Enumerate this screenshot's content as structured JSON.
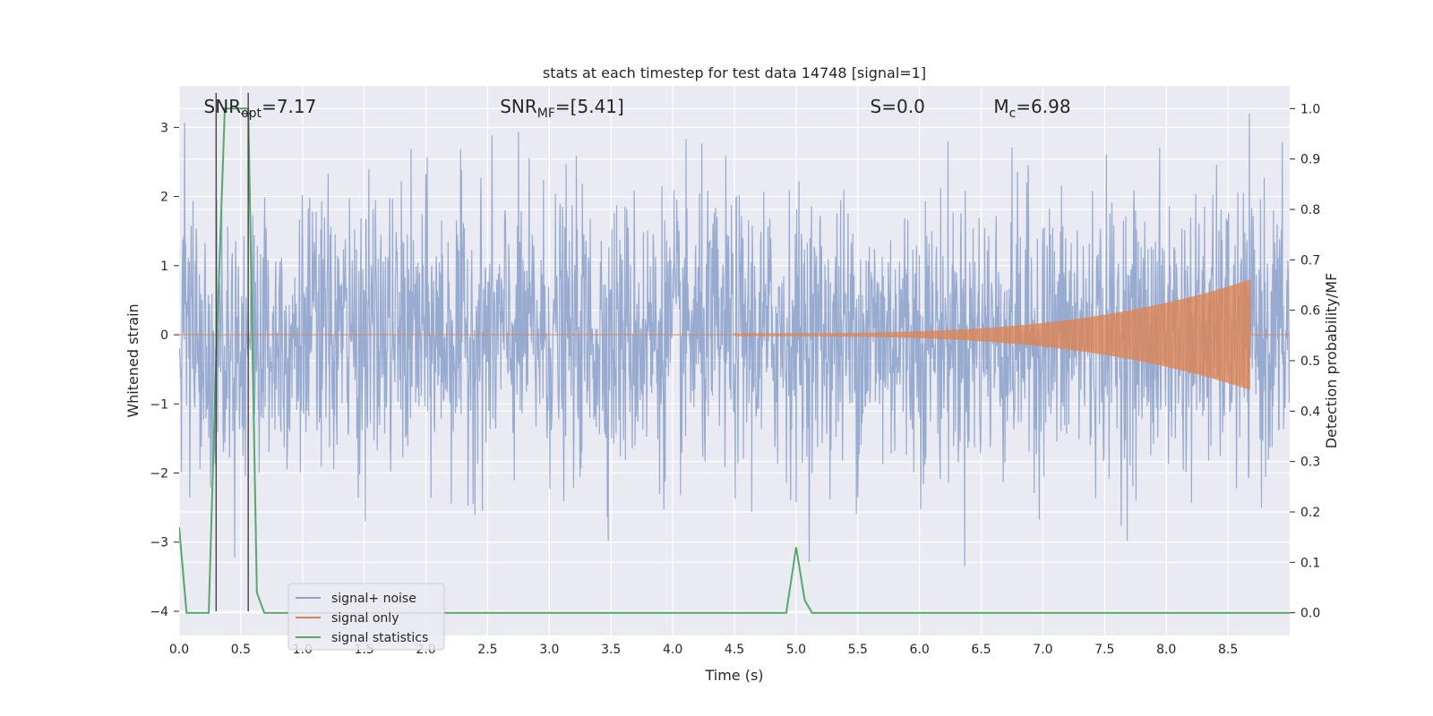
{
  "chart_data": {
    "type": "line",
    "title": "stats at each timestep for test data 14748 [signal=1]",
    "xlabel": "Time (s)",
    "ylabel": "Whitened strain",
    "y2label": "Detection probability/MF",
    "xlim": [
      0,
      9.0
    ],
    "ylim": [
      -4.35,
      3.6
    ],
    "y2lim": [
      -0.045,
      1.045
    ],
    "xticks": [
      "0.0",
      "0.5",
      "1.0",
      "1.5",
      "2.0",
      "2.5",
      "3.0",
      "3.5",
      "4.0",
      "4.5",
      "5.0",
      "5.5",
      "6.0",
      "6.5",
      "7.0",
      "7.5",
      "8.0",
      "8.5"
    ],
    "yticks": [
      "-4",
      "-3",
      "-2",
      "-1",
      "0",
      "1",
      "2",
      "3"
    ],
    "y2ticks": [
      "0.0",
      "0.1",
      "0.2",
      "0.3",
      "0.4",
      "0.5",
      "0.6",
      "0.7",
      "0.8",
      "0.9",
      "1.0"
    ],
    "grid": true,
    "legend_position": "lower-left",
    "annotations": [
      {
        "label": "SNR_opt=7.17",
        "x": 0.2,
        "y": 3.3
      },
      {
        "label": "SNR_MF=[5.41]",
        "x": 2.6,
        "y": 3.3
      },
      {
        "label": "S=0.0",
        "x": 5.6,
        "y": 3.3
      },
      {
        "label": "M_c=6.98",
        "x": 6.6,
        "y": 3.3
      }
    ],
    "markers": [
      0.3,
      0.56
    ],
    "series": [
      {
        "name": "signal+ noise",
        "color": "#8ea3cc",
        "style": "noise",
        "x_range": [
          0,
          9.0
        ],
        "typical_amplitude": 1.8,
        "peak_amplitude": 3.2
      },
      {
        "name": "signal only",
        "color": "#dd8452",
        "style": "chirp",
        "start": 4.5,
        "end": 8.68,
        "amplitude_start": 0.02,
        "amplitude_end": 0.8
      },
      {
        "name": "signal statistics",
        "color": "#55a868",
        "axis": "right",
        "x": [
          0.0,
          0.06,
          0.12,
          0.24,
          0.3,
          0.37,
          0.4,
          0.56,
          0.63,
          0.69,
          4.92,
          5.0,
          5.07,
          5.13,
          9.0
        ],
        "y": [
          0.17,
          0.0,
          0.0,
          0.0,
          0.5,
          1.0,
          1.0,
          1.0,
          0.04,
          0.0,
          0.0,
          0.13,
          0.025,
          0.0,
          0.0
        ]
      }
    ]
  }
}
